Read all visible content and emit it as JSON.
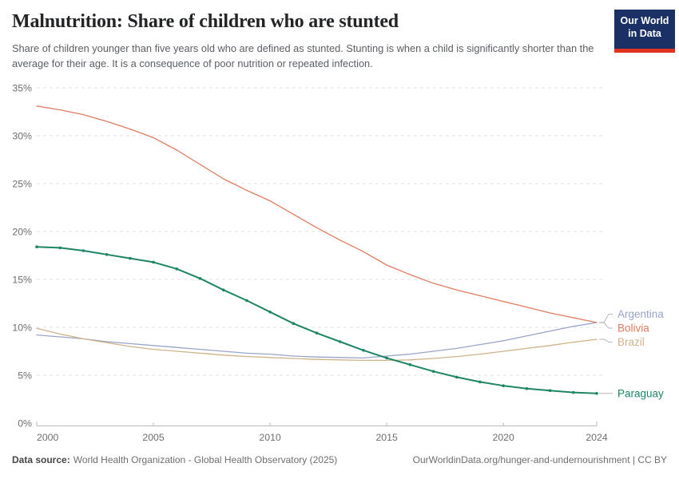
{
  "header": {
    "title": "Malnutrition: Share of children who are stunted",
    "logo_line1": "Our World",
    "logo_line2": "in Data"
  },
  "subtitle": "Share of children younger than five years old who are defined as stunted. Stunting is when a child is significantly shorter than the average for their age. It is a consequence of poor nutrition or repeated infection.",
  "footer": {
    "datasource_label": "Data source:",
    "datasource": "World Health Organization - Global Health Observatory (2025)",
    "attribution": "OurWorldinData.org/hunger-and-undernourishment | CC BY"
  },
  "colors": {
    "logo_navy": "#1b3166",
    "logo_red": "#e0321f",
    "gridline": "#e2e2e2",
    "axis_line": "#b8b8b8",
    "axis_text": "#6e6e6e",
    "connector": "#a3a3a3"
  },
  "chart_data": {
    "type": "line",
    "title": "Malnutrition: Share of children who are stunted",
    "xlabel": "",
    "ylabel": "",
    "ylim": [
      0,
      35
    ],
    "grid": true,
    "legend_position": "right",
    "y_ticks": [
      0,
      5,
      10,
      15,
      20,
      25,
      30,
      35
    ],
    "y_tick_suffix": "%",
    "x_ticks": [
      2000,
      2005,
      2010,
      2015,
      2020,
      2024
    ],
    "x": [
      2000,
      2001,
      2002,
      2003,
      2004,
      2005,
      2006,
      2007,
      2008,
      2009,
      2010,
      2011,
      2012,
      2013,
      2014,
      2015,
      2016,
      2017,
      2018,
      2019,
      2020,
      2021,
      2022,
      2023,
      2024
    ],
    "series": [
      {
        "name": "Argentina",
        "color": "#98a5c9",
        "width": 1.3,
        "markers": false,
        "values": [
          9.2,
          9.0,
          8.8,
          8.5,
          8.3,
          8.1,
          7.9,
          7.7,
          7.5,
          7.3,
          7.2,
          7.0,
          6.9,
          6.85,
          6.8,
          7.0,
          7.2,
          7.5,
          7.8,
          8.2,
          8.6,
          9.1,
          9.6,
          10.1,
          10.5
        ]
      },
      {
        "name": "Bolivia",
        "color": "#e07b61",
        "width": 1.3,
        "markers": false,
        "values": [
          33.1,
          32.7,
          32.2,
          31.5,
          30.7,
          29.8,
          28.5,
          27.0,
          25.5,
          24.3,
          23.2,
          21.8,
          20.4,
          19.1,
          17.9,
          16.5,
          15.5,
          14.6,
          13.9,
          13.3,
          12.7,
          12.1,
          11.5,
          11.0,
          10.5
        ]
      },
      {
        "name": "Brazil",
        "color": "#cfb28a",
        "width": 1.3,
        "markers": false,
        "values": [
          9.9,
          9.3,
          8.8,
          8.4,
          8.0,
          7.7,
          7.5,
          7.3,
          7.1,
          6.95,
          6.85,
          6.75,
          6.65,
          6.6,
          6.55,
          6.55,
          6.6,
          6.75,
          6.95,
          7.2,
          7.5,
          7.8,
          8.1,
          8.45,
          8.75
        ]
      },
      {
        "name": "Paraguay",
        "color": "#1e8565",
        "width": 2,
        "markers": true,
        "values": [
          18.4,
          18.3,
          18.0,
          17.6,
          17.2,
          16.8,
          16.1,
          15.1,
          13.9,
          12.8,
          11.6,
          10.4,
          9.4,
          8.5,
          7.6,
          6.8,
          6.1,
          5.4,
          4.8,
          4.3,
          3.9,
          3.6,
          3.4,
          3.2,
          3.1
        ]
      }
    ]
  }
}
